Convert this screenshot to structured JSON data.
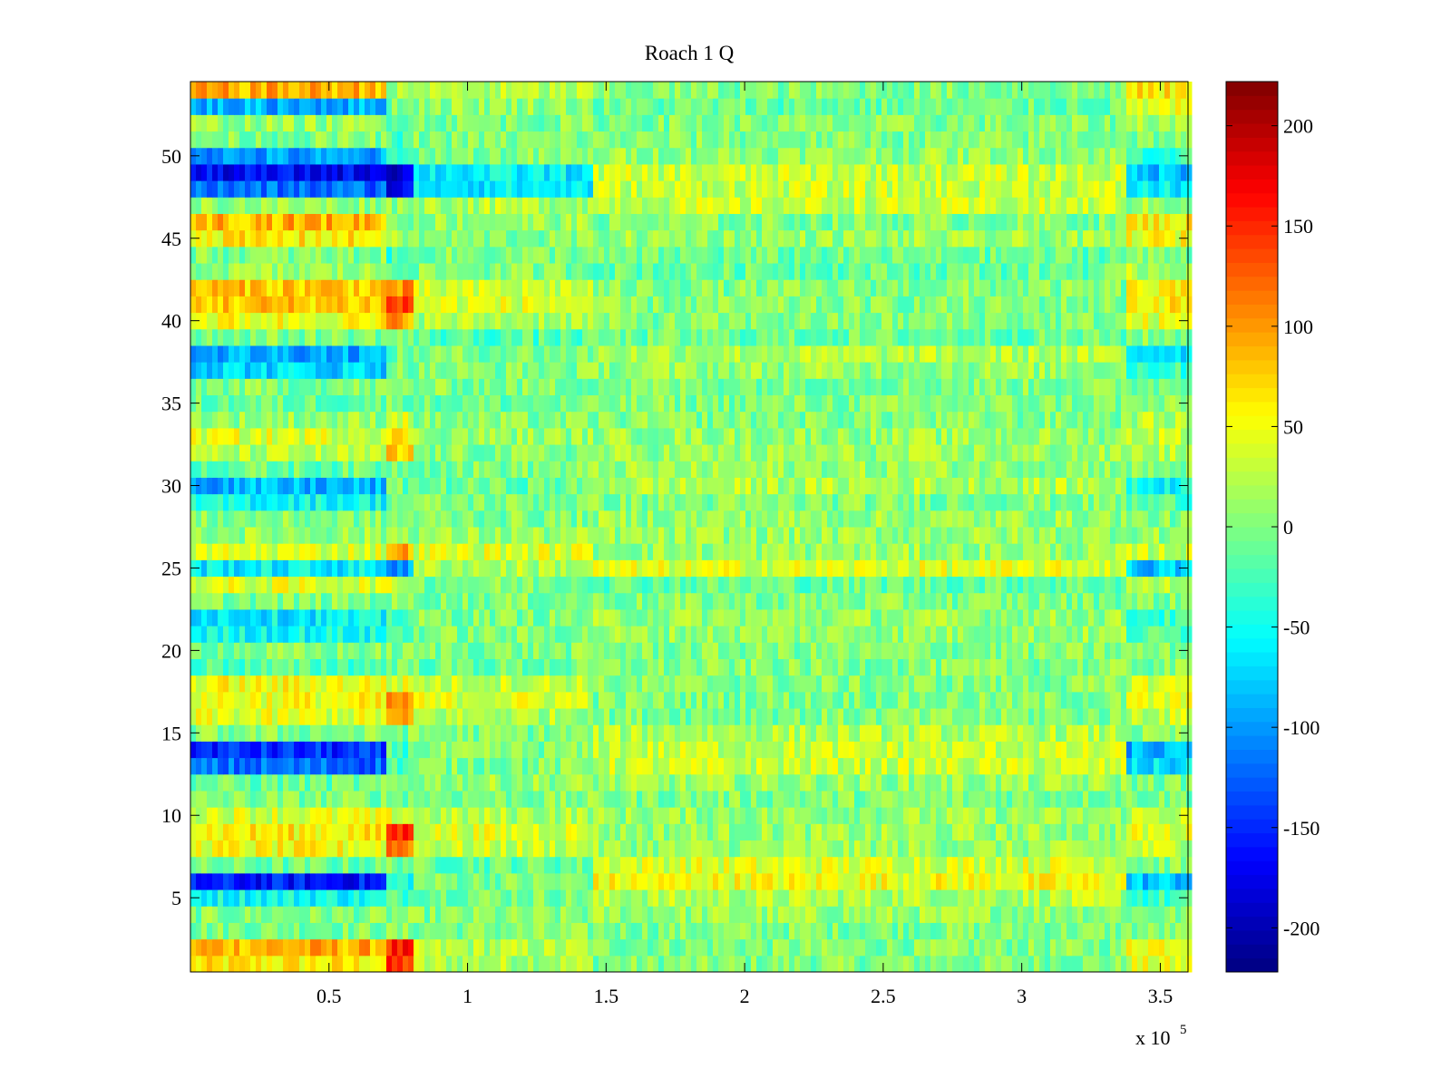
{
  "chart_data": {
    "type": "heatmap",
    "title": "Roach 1 Q",
    "xlabel": "",
    "ylabel": "",
    "x_multiplier_label": "x 10",
    "x_multiplier_exponent": "5",
    "x_range": [
      0,
      360000
    ],
    "y_range": [
      0.5,
      54.5
    ],
    "rows": 54,
    "xlim": [
      0,
      3.6
    ],
    "x_ticks": [
      {
        "value": 0.5,
        "label": "0.5"
      },
      {
        "value": 1,
        "label": "1"
      },
      {
        "value": 1.5,
        "label": "1.5"
      },
      {
        "value": 2,
        "label": "2"
      },
      {
        "value": 2.5,
        "label": "2.5"
      },
      {
        "value": 3,
        "label": "3"
      },
      {
        "value": 3.5,
        "label": "3.5"
      }
    ],
    "y_ticks": [
      {
        "value": 5,
        "label": "5"
      },
      {
        "value": 10,
        "label": "10"
      },
      {
        "value": 15,
        "label": "15"
      },
      {
        "value": 20,
        "label": "20"
      },
      {
        "value": 25,
        "label": "25"
      },
      {
        "value": 30,
        "label": "30"
      },
      {
        "value": 35,
        "label": "35"
      },
      {
        "value": 40,
        "label": "40"
      },
      {
        "value": 45,
        "label": "45"
      },
      {
        "value": 50,
        "label": "50"
      }
    ],
    "colorbar": {
      "colormap": "jet",
      "clim": [
        -222,
        222
      ],
      "ticks": [
        {
          "value": 200,
          "label": "200"
        },
        {
          "value": 150,
          "label": "150"
        },
        {
          "value": 100,
          "label": "100"
        },
        {
          "value": 50,
          "label": "50"
        },
        {
          "value": 0,
          "label": "0"
        },
        {
          "value": -50,
          "label": "-50"
        },
        {
          "value": -100,
          "label": "-100"
        },
        {
          "value": -150,
          "label": "-150"
        },
        {
          "value": -200,
          "label": "-200"
        }
      ]
    },
    "segments_x": [
      0,
      0.7,
      0.8,
      1.45,
      3.37,
      3.6
    ],
    "row_means_by_segment": {
      "54": [
        90,
        10,
        20,
        0,
        60
      ],
      "53": [
        -90,
        0,
        10,
        -10,
        40
      ],
      "52": [
        10,
        0,
        0,
        0,
        20
      ],
      "51": [
        0,
        -30,
        0,
        0,
        0
      ],
      "50": [
        -100,
        -40,
        0,
        10,
        -30
      ],
      "49": [
        -170,
        -180,
        -60,
        30,
        -80
      ],
      "48": [
        -120,
        -170,
        -60,
        30,
        -60
      ],
      "47": [
        10,
        10,
        20,
        30,
        10
      ],
      "46": [
        90,
        0,
        10,
        0,
        60
      ],
      "45": [
        60,
        10,
        0,
        10,
        50
      ],
      "44": [
        0,
        -30,
        0,
        -10,
        0
      ],
      "43": [
        10,
        0,
        0,
        -10,
        20
      ],
      "42": [
        80,
        100,
        30,
        0,
        50
      ],
      "41": [
        80,
        140,
        40,
        0,
        60
      ],
      "40": [
        50,
        100,
        20,
        0,
        40
      ],
      "39": [
        0,
        0,
        -20,
        -10,
        0
      ],
      "38": [
        -90,
        -10,
        0,
        20,
        -60
      ],
      "37": [
        -70,
        0,
        0,
        10,
        -30
      ],
      "36": [
        0,
        0,
        0,
        0,
        0
      ],
      "35": [
        -10,
        0,
        -10,
        0,
        0
      ],
      "34": [
        10,
        40,
        0,
        0,
        20
      ],
      "33": [
        40,
        60,
        10,
        10,
        30
      ],
      "32": [
        20,
        70,
        0,
        10,
        20
      ],
      "31": [
        -10,
        0,
        0,
        10,
        0
      ],
      "30": [
        -90,
        -10,
        -10,
        20,
        -50
      ],
      "29": [
        -50,
        0,
        0,
        0,
        -20
      ],
      "28": [
        0,
        0,
        0,
        10,
        0
      ],
      "27": [
        10,
        20,
        10,
        10,
        10
      ],
      "26": [
        40,
        90,
        40,
        10,
        30
      ],
      "25": [
        -60,
        -100,
        20,
        40,
        -80
      ],
      "24": [
        40,
        30,
        0,
        -10,
        20
      ],
      "23": [
        0,
        0,
        0,
        0,
        0
      ],
      "22": [
        -60,
        -20,
        0,
        10,
        -30
      ],
      "21": [
        -50,
        -20,
        0,
        10,
        -20
      ],
      "20": [
        0,
        0,
        0,
        0,
        0
      ],
      "19": [
        -20,
        0,
        -10,
        0,
        0
      ],
      "18": [
        50,
        40,
        30,
        0,
        40
      ],
      "17": [
        50,
        100,
        40,
        0,
        40
      ],
      "16": [
        40,
        80,
        20,
        0,
        30
      ],
      "15": [
        0,
        0,
        0,
        20,
        0
      ],
      "14": [
        -150,
        -20,
        0,
        30,
        -90
      ],
      "13": [
        -120,
        -20,
        0,
        30,
        -70
      ],
      "12": [
        -10,
        0,
        10,
        10,
        0
      ],
      "11": [
        0,
        0,
        0,
        0,
        0
      ],
      "10": [
        40,
        40,
        20,
        10,
        30
      ],
      "9": [
        60,
        150,
        40,
        10,
        40
      ],
      "8": [
        50,
        120,
        30,
        10,
        30
      ],
      "7": [
        -10,
        0,
        -10,
        40,
        0
      ],
      "6": [
        -160,
        -40,
        0,
        50,
        -80
      ],
      "5": [
        -50,
        -20,
        0,
        20,
        -30
      ],
      "4": [
        0,
        0,
        0,
        10,
        0
      ],
      "3": [
        0,
        0,
        0,
        0,
        0
      ],
      "2": [
        90,
        150,
        20,
        0,
        60
      ],
      "1": [
        60,
        140,
        20,
        0,
        40
      ]
    }
  }
}
